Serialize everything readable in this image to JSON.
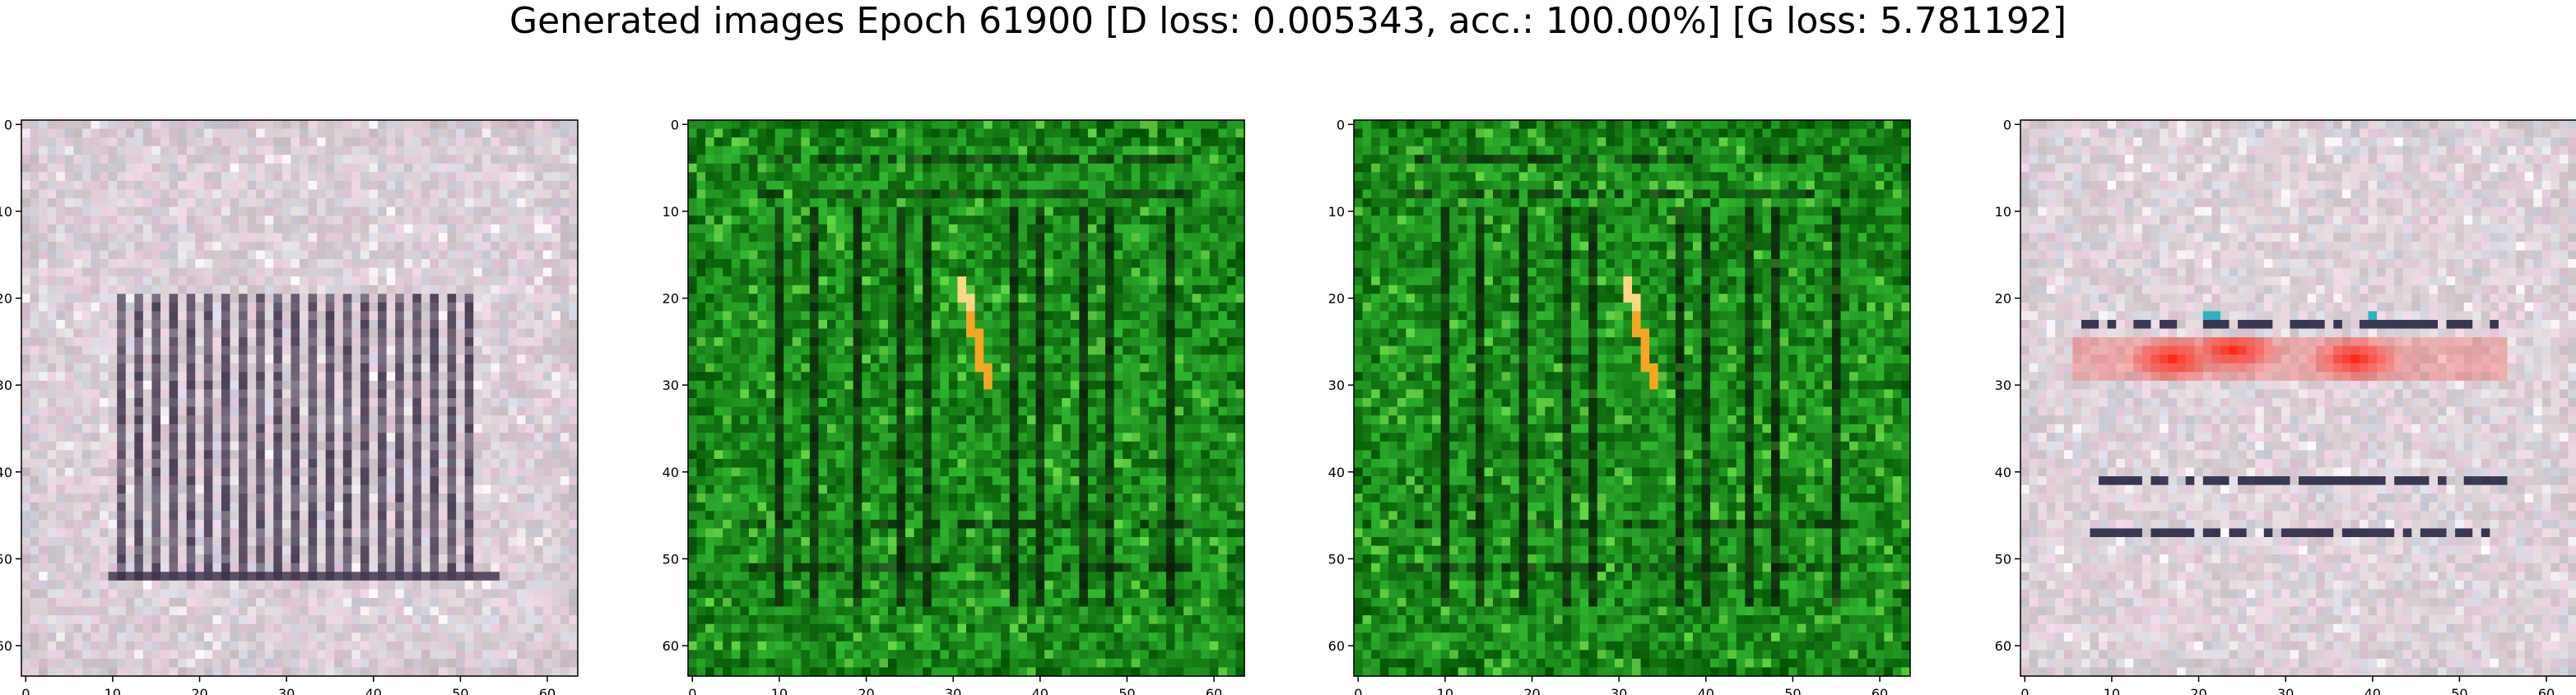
{
  "figure": {
    "suptitle": "Generated images Epoch 61900 [D loss: 0.005343, acc.: 100.00%] [G loss: 5.781192]"
  },
  "chart_data": [
    {
      "type": "heatmap",
      "title": "",
      "xlabel": "",
      "ylabel": "",
      "xlim": [
        -0.5,
        63.5
      ],
      "ylim": [
        63.5,
        -0.5
      ],
      "xticks": [
        0,
        10,
        20,
        30,
        40,
        50,
        60
      ],
      "yticks": [
        0,
        10,
        20,
        30,
        40,
        50,
        60
      ],
      "grid": false,
      "image": {
        "size": [
          64,
          64
        ],
        "palette": "light gray-pink noise",
        "base_color": "#d8cdd2",
        "border_color": "#c9bfc6",
        "stripe_color": "#3b3048",
        "vertical_stripes_x": [
          11,
          13,
          15,
          17,
          19,
          21,
          23,
          25,
          27,
          29,
          31,
          33,
          35,
          37,
          39,
          41,
          43,
          45,
          47,
          49,
          51
        ],
        "vertical_stripes_y_range": [
          20,
          52
        ],
        "horizontal_line_y": 52,
        "horizontal_line_x_range": [
          10,
          54
        ]
      }
    },
    {
      "type": "heatmap",
      "title": "",
      "xlabel": "",
      "ylabel": "",
      "xlim": [
        -0.5,
        63.5
      ],
      "ylim": [
        63.5,
        -0.5
      ],
      "xticks": [
        0,
        10,
        20,
        30,
        40,
        50,
        60
      ],
      "yticks": [
        0,
        10,
        20,
        30,
        40,
        50,
        60
      ],
      "grid": false,
      "image": {
        "size": [
          64,
          64
        ],
        "palette": "green noise",
        "base_color": "#1d8a1d",
        "border_color": "#0f700f",
        "stripe_color": "#0a1a0a",
        "vertical_stripes_x": [
          10,
          14,
          19,
          24,
          27,
          37,
          40,
          45,
          48,
          55
        ],
        "vertical_stripes_y_range": [
          10,
          55
        ],
        "horizontal_lines_y": [
          4,
          8,
          46,
          51
        ],
        "highlight_color": "#f5a623",
        "highlight_streak": [
          [
            31,
            18
          ],
          [
            32,
            22
          ],
          [
            33,
            26
          ],
          [
            34,
            30
          ]
        ]
      }
    },
    {
      "type": "heatmap",
      "title": "",
      "xlabel": "",
      "ylabel": "",
      "xlim": [
        -0.5,
        63.5
      ],
      "ylim": [
        63.5,
        -0.5
      ],
      "xticks": [
        0,
        10,
        20,
        30,
        40,
        50,
        60
      ],
      "yticks": [
        0,
        10,
        20,
        30,
        40,
        50,
        60
      ],
      "grid": false,
      "image": {
        "size": [
          64,
          64
        ],
        "palette": "green noise",
        "base_color": "#1d8a1d",
        "border_color": "#0f700f",
        "stripe_color": "#0a1a0a",
        "vertical_stripes_x": [
          10,
          14,
          19,
          24,
          27,
          37,
          40,
          45,
          48,
          55
        ],
        "vertical_stripes_y_range": [
          10,
          55
        ],
        "horizontal_lines_y": [
          4,
          8,
          46,
          51
        ],
        "highlight_color": "#f5a623",
        "highlight_streak": [
          [
            31,
            18
          ],
          [
            32,
            22
          ],
          [
            33,
            26
          ],
          [
            34,
            30
          ]
        ]
      }
    },
    {
      "type": "heatmap",
      "title": "",
      "xlabel": "",
      "ylabel": "",
      "xlim": [
        -0.5,
        63.5
      ],
      "ylim": [
        63.5,
        -0.5
      ],
      "xticks": [
        0,
        10,
        20,
        30,
        40,
        50,
        60
      ],
      "yticks": [
        0,
        10,
        20,
        30,
        40,
        50,
        60
      ],
      "grid": false,
      "image": {
        "size": [
          64,
          64
        ],
        "palette": "light gray-pink noise",
        "base_color": "#dcd2d6",
        "border_color": "#cfc5ca",
        "stripe_color": "#1c1c3a",
        "horizontal_lines": [
          {
            "y": 23,
            "x_range": [
              7,
              54
            ]
          },
          {
            "y": 41,
            "x_range": [
              8,
              55
            ]
          },
          {
            "y": 47,
            "x_range": [
              8,
              55
            ]
          }
        ],
        "red_band": {
          "y_range": [
            25,
            29
          ],
          "x_range": [
            6,
            55
          ],
          "color": "#ff2a1a",
          "blobs": [
            [
              17,
              27
            ],
            [
              24,
              26
            ],
            [
              38,
              27
            ]
          ]
        },
        "accent_color": "#2bb3c0"
      }
    }
  ]
}
